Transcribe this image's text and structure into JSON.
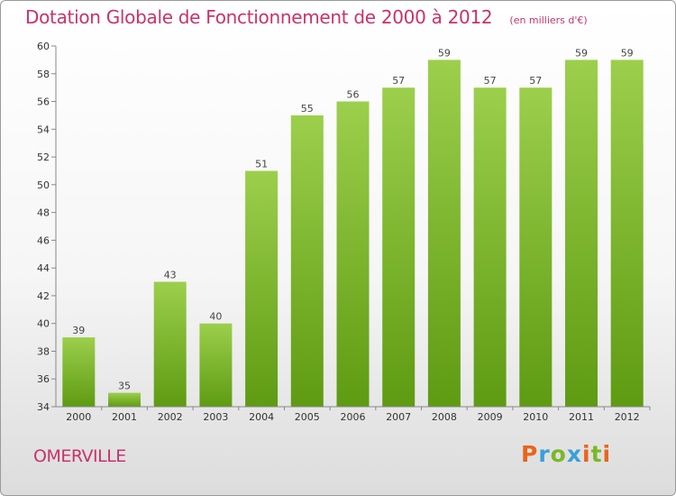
{
  "chart_data": {
    "type": "bar",
    "title": "Dotation Globale de Fonctionnement de 2000 à 2012",
    "subtitle": "(en milliers d'€)",
    "categories": [
      "2000",
      "2001",
      "2002",
      "2003",
      "2004",
      "2005",
      "2006",
      "2007",
      "2008",
      "2009",
      "2010",
      "2011",
      "2012"
    ],
    "values": [
      39,
      35,
      43,
      40,
      51,
      55,
      56,
      57,
      59,
      57,
      57,
      59,
      59
    ],
    "ylim": [
      34,
      60
    ],
    "yticks": [
      34,
      36,
      38,
      40,
      42,
      44,
      46,
      48,
      50,
      52,
      54,
      56,
      58,
      60
    ],
    "grid": false,
    "bar_color_top": "#9ccf4c",
    "bar_color_bottom": "#5e9b12"
  },
  "location": "OMERVILLE",
  "brand": {
    "letters": [
      "P",
      "r",
      "o",
      "x",
      "i",
      "t",
      "i"
    ],
    "colors": [
      "#e8651c",
      "#3aa0d8",
      "#7ab828",
      "#3aa0d8",
      "#e8651c",
      "#7ab828",
      "#e8651c"
    ]
  }
}
